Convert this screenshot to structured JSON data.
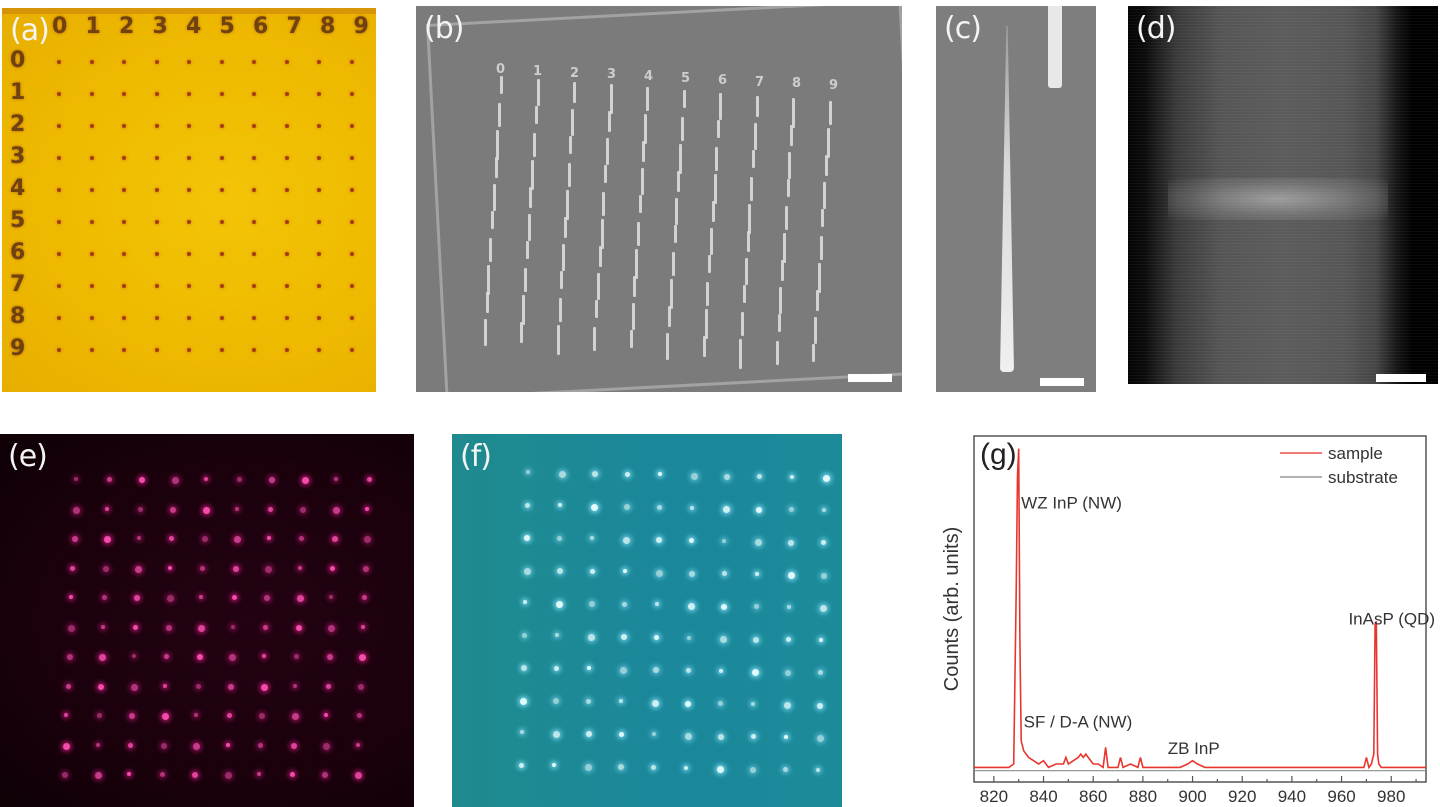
{
  "figure": {
    "panels": [
      {
        "id": "a",
        "label": "(a)",
        "kind": "optical-microscope",
        "colors": {
          "background": "#eebb00",
          "marks": "#5a2e12"
        }
      },
      {
        "id": "b",
        "label": "(b)",
        "kind": "sem-array",
        "colors": {
          "background": "#7b7b7b"
        }
      },
      {
        "id": "c",
        "label": "(c)",
        "kind": "sem-single-nanowire",
        "colors": {
          "background": "#7e7e7e"
        }
      },
      {
        "id": "d",
        "label": "(d)",
        "kind": "stem-quantum-dot",
        "colors": {
          "background": "#000000"
        }
      },
      {
        "id": "e",
        "label": "(e)",
        "kind": "pl-map-red",
        "colors": {
          "background": "#1a010c",
          "spot": "#ff4fb3"
        }
      },
      {
        "id": "f",
        "label": "(f)",
        "kind": "pl-map-cyan",
        "colors": {
          "background": "#1a8a9a",
          "spot": "#e8ffff"
        }
      },
      {
        "id": "g",
        "label": "(g)",
        "kind": "spectrum"
      }
    ],
    "panel_a": {
      "column_labels": [
        "0",
        "1",
        "2",
        "3",
        "4",
        "5",
        "6",
        "7",
        "8",
        "9"
      ],
      "row_labels": [
        "0",
        "1",
        "2",
        "3",
        "4",
        "5",
        "6",
        "7",
        "8",
        "9"
      ]
    },
    "grid": {
      "rows": 10,
      "cols": 10
    }
  },
  "chart_data": {
    "type": "line",
    "title": "",
    "panel_label": "(g)",
    "xlabel": "",
    "ylabel": "Counts (arb. units)",
    "xlim": [
      812,
      994
    ],
    "ylim": [
      0,
      1.0
    ],
    "xticks": [
      820,
      840,
      860,
      880,
      900,
      920,
      940,
      960,
      980
    ],
    "grid": false,
    "legend": {
      "position": "top-right",
      "entries": [
        {
          "name": "sample",
          "color": "#e8362f"
        },
        {
          "name": "substrate",
          "color": "#8c8c8c"
        }
      ]
    },
    "annotations": [
      {
        "text": "WZ InP (NW)",
        "x": 831,
        "y": 0.8
      },
      {
        "text": "SF / D-A (NW)",
        "x": 832,
        "y": 0.14
      },
      {
        "text": "ZB InP",
        "x": 890,
        "y": 0.06
      },
      {
        "text": "InAsP (QD)",
        "x": 966,
        "y": 0.45
      }
    ],
    "series": [
      {
        "name": "sample",
        "color": "#e8362f",
        "x": [
          812,
          826,
          828,
          829,
          829.5,
          830,
          830.5,
          831,
          832,
          834,
          836,
          838,
          840,
          841,
          842,
          845,
          848,
          849,
          850,
          852,
          854,
          855,
          856,
          857,
          858,
          860,
          862,
          864,
          865,
          866,
          870,
          871,
          872,
          875,
          878,
          879,
          880,
          885,
          890,
          895,
          898,
          900,
          902,
          905,
          910,
          920,
          940,
          960,
          969,
          970,
          971,
          972,
          973,
          973.5,
          974,
          974.5,
          975,
          976,
          980,
          994
        ],
        "y": [
          0.02,
          0.02,
          0.03,
          0.55,
          0.9,
          0.98,
          0.4,
          0.1,
          0.07,
          0.05,
          0.04,
          0.03,
          0.04,
          0.03,
          0.02,
          0.03,
          0.03,
          0.05,
          0.03,
          0.04,
          0.05,
          0.06,
          0.05,
          0.06,
          0.05,
          0.03,
          0.03,
          0.02,
          0.08,
          0.02,
          0.02,
          0.05,
          0.02,
          0.03,
          0.02,
          0.05,
          0.02,
          0.02,
          0.02,
          0.02,
          0.03,
          0.04,
          0.03,
          0.02,
          0.02,
          0.02,
          0.02,
          0.02,
          0.02,
          0.05,
          0.02,
          0.03,
          0.06,
          0.45,
          0.46,
          0.06,
          0.03,
          0.02,
          0.02,
          0.02
        ]
      },
      {
        "name": "substrate",
        "color": "#8c8c8c",
        "x": [
          812,
          850,
          900,
          950,
          994
        ],
        "y": [
          0.01,
          0.01,
          0.01,
          0.01,
          0.01
        ]
      }
    ]
  }
}
